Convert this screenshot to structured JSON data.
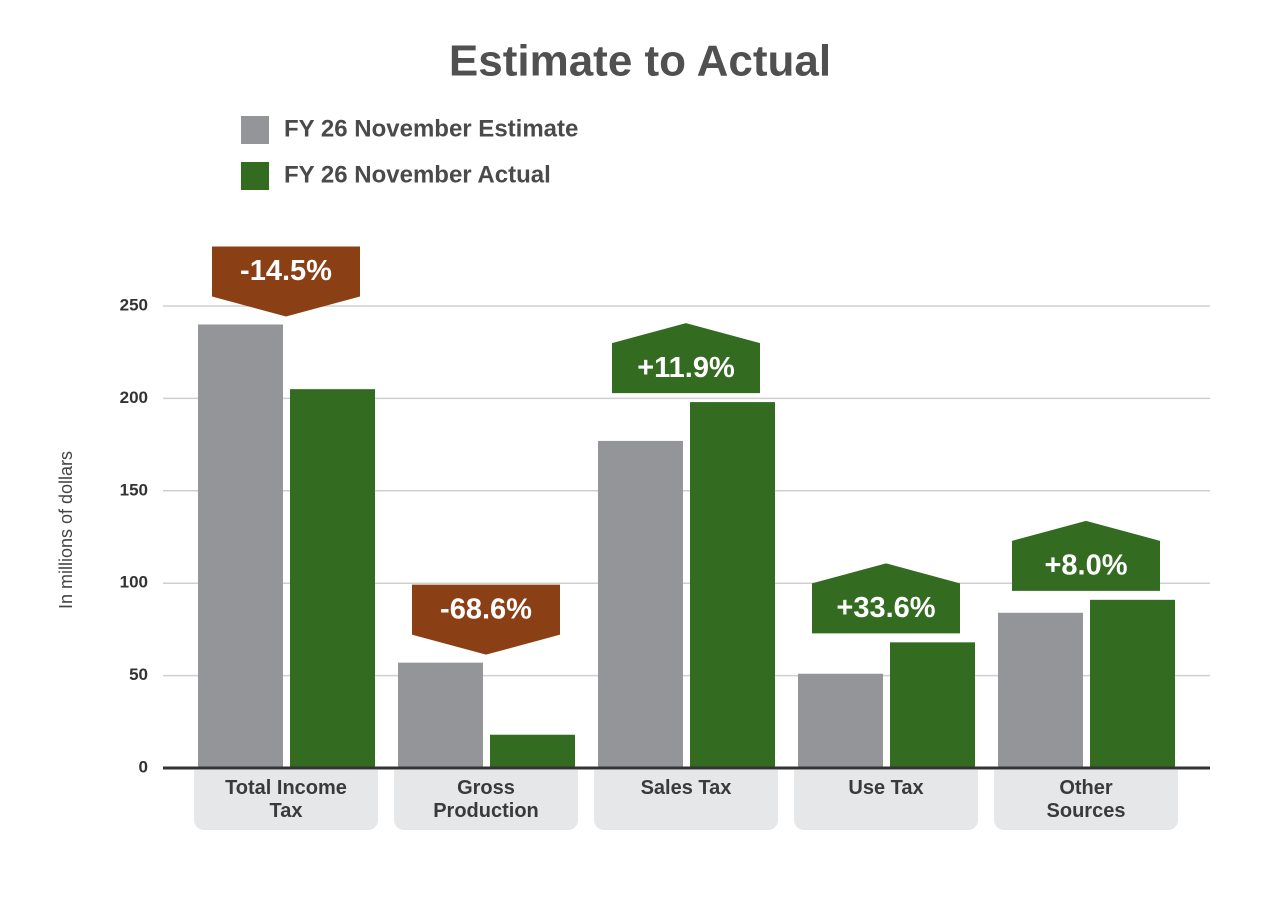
{
  "chart_data": {
    "type": "bar",
    "title": "Estimate to Actual",
    "y_label": "In millions of dollars",
    "categories": [
      "Total Income Tax",
      "Gross Production",
      "Sales Tax",
      "Use Tax",
      "Other Sources"
    ],
    "series": [
      {
        "name": "FY 26 November Estimate",
        "color": "#939598",
        "values": [
          240,
          57,
          177,
          51,
          84
        ]
      },
      {
        "name": "FY 26 November Actual",
        "color": "#336b21",
        "values": [
          205,
          18,
          198,
          68,
          91
        ]
      }
    ],
    "annotations": [
      "-14.5%",
      "-68.6%",
      "+11.9%",
      "+33.6%",
      "+8.0%"
    ],
    "annotation_colors": [
      "#8b3f15",
      "#8b3f15",
      "#336b21",
      "#336b21",
      "#336b21"
    ],
    "ylim": [
      0,
      250
    ],
    "yticks": [
      0,
      50,
      100,
      150,
      200,
      250
    ],
    "grid": true
  }
}
